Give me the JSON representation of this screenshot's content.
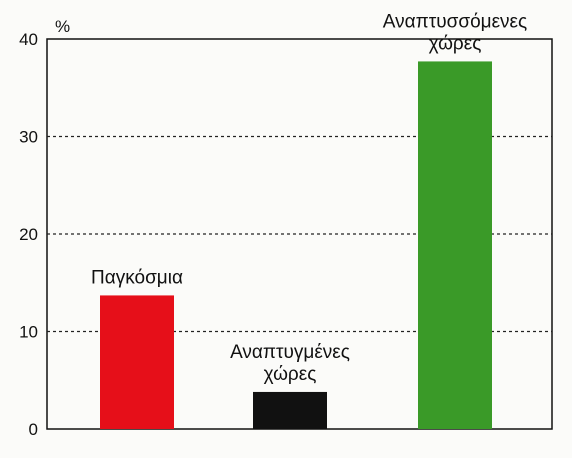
{
  "chart_data": {
    "type": "bar",
    "ylabel": "%",
    "ylim": [
      0,
      40
    ],
    "yticks": [
      0,
      10,
      20,
      30,
      40
    ],
    "grid": "dotted-horizontal",
    "legend": "none",
    "categories": [
      [
        "Παγκόσμια"
      ],
      [
        "Αναπτυγμένες",
        "χώρες"
      ],
      [
        "Αναπτυσσόμενες",
        "χώρες"
      ]
    ],
    "values": [
      13.7,
      3.8,
      37.7
    ],
    "colors": [
      "#e60f19",
      "#111111",
      "#3a9a28"
    ]
  }
}
